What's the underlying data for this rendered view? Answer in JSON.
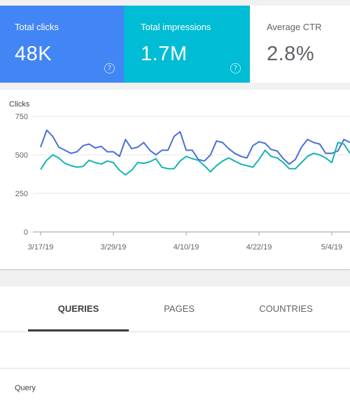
{
  "metrics": {
    "clicks": {
      "label": "Total clicks",
      "value": "48K",
      "color": "#4285f4"
    },
    "impressions": {
      "label": "Total impressions",
      "value": "1.7M",
      "color": "#00bcd4"
    },
    "ctr": {
      "label": "Average CTR",
      "value": "2.8%"
    },
    "help_icon": "help-circle-icon"
  },
  "chart_data": {
    "type": "line",
    "ylabel": "Clicks",
    "ylim": [
      0,
      750
    ],
    "yticks": [
      "750",
      "500",
      "250",
      "0"
    ],
    "ytick_values": [
      750,
      500,
      250,
      0
    ],
    "xticks": [
      "3/17/19",
      "3/29/19",
      "4/10/19",
      "4/22/19",
      "5/4/19"
    ],
    "xtick_index": [
      0,
      12,
      24,
      36,
      48
    ],
    "grid": true,
    "series": [
      {
        "color": "#4a6fd8",
        "values": [
          550,
          660,
          620,
          550,
          530,
          510,
          520,
          560,
          570,
          545,
          555,
          520,
          520,
          490,
          600,
          540,
          550,
          580,
          530,
          500,
          530,
          530,
          620,
          650,
          530,
          530,
          470,
          460,
          500,
          590,
          580,
          540,
          510,
          490,
          480,
          560,
          585,
          575,
          535,
          525,
          475,
          440,
          470,
          550,
          600,
          580,
          570,
          510,
          510,
          525,
          600,
          580
        ]
      },
      {
        "color": "#12b5b0",
        "values": [
          405,
          465,
          500,
          480,
          445,
          430,
          420,
          425,
          465,
          450,
          440,
          460,
          450,
          400,
          370,
          400,
          450,
          445,
          455,
          475,
          420,
          410,
          410,
          460,
          490,
          475,
          465,
          430,
          390,
          430,
          460,
          480,
          460,
          440,
          430,
          420,
          470,
          530,
          490,
          480,
          450,
          410,
          410,
          450,
          490,
          510,
          500,
          480,
          450,
          580,
          570,
          510
        ]
      }
    ]
  },
  "tabs": {
    "items": [
      {
        "label": "QUERIES",
        "active": true
      },
      {
        "label": "PAGES",
        "active": false
      },
      {
        "label": "COUNTRIES",
        "active": false
      }
    ]
  },
  "table": {
    "column_header": "Query"
  }
}
